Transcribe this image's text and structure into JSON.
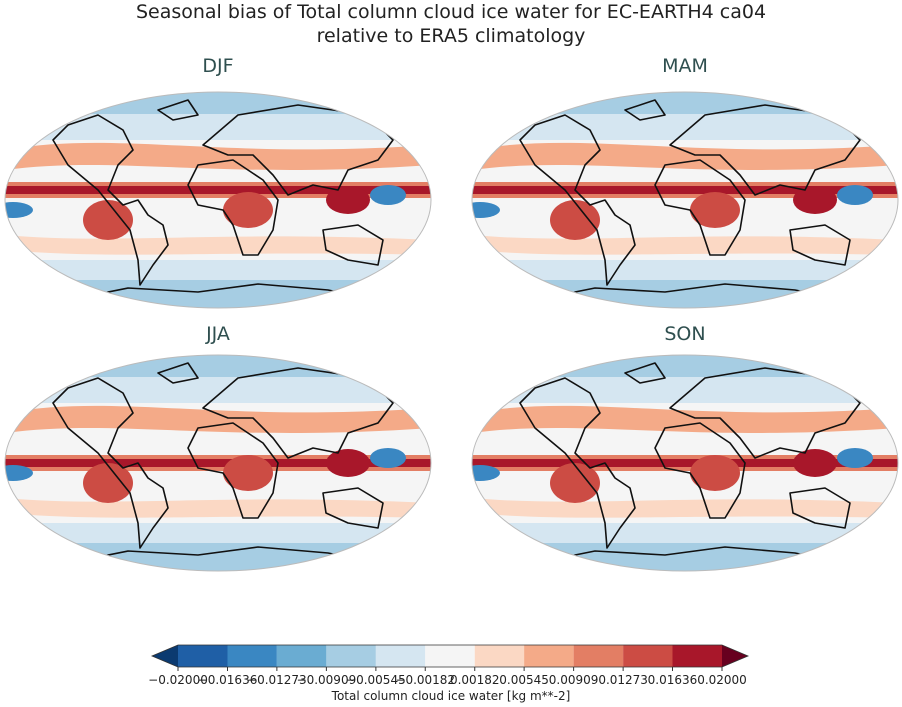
{
  "figure": {
    "title": [
      "Seasonal bias of Total column cloud ice water for EC-EARTH4 ca04",
      "relative to ERA5 climatology"
    ],
    "panels": [
      "DJF",
      "MAM",
      "JJA",
      "SON"
    ],
    "colorbar": {
      "label": "Total column cloud ice water [kg m**-2]",
      "ticks": [
        {
          "value": -0.02,
          "label": "−0.02000"
        },
        {
          "value": -0.01636,
          "label": "−0.01636"
        },
        {
          "value": -0.01273,
          "label": "−0.01273"
        },
        {
          "value": -0.00909,
          "label": "−0.00909"
        },
        {
          "value": -0.00545,
          "label": "−0.00545"
        },
        {
          "value": -0.00182,
          "label": "−0.00182"
        },
        {
          "value": 0.00182,
          "label": "0.00182"
        },
        {
          "value": 0.00545,
          "label": "0.00545"
        },
        {
          "value": 0.00909,
          "label": "0.00909"
        },
        {
          "value": 0.01273,
          "label": "0.01273"
        },
        {
          "value": 0.01636,
          "label": "0.01636"
        },
        {
          "value": 0.02,
          "label": "0.02000"
        }
      ],
      "colors": [
        "#1f5fa6",
        "#3a87c2",
        "#6aacd2",
        "#a6cde3",
        "#d5e6f1",
        "#f5f5f5",
        "#fbd8c4",
        "#f4aa88",
        "#e37e64",
        "#cc4c44",
        "#a8172a"
      ],
      "under_color": "#0b3a70",
      "over_color": "#67001f"
    }
  }
}
